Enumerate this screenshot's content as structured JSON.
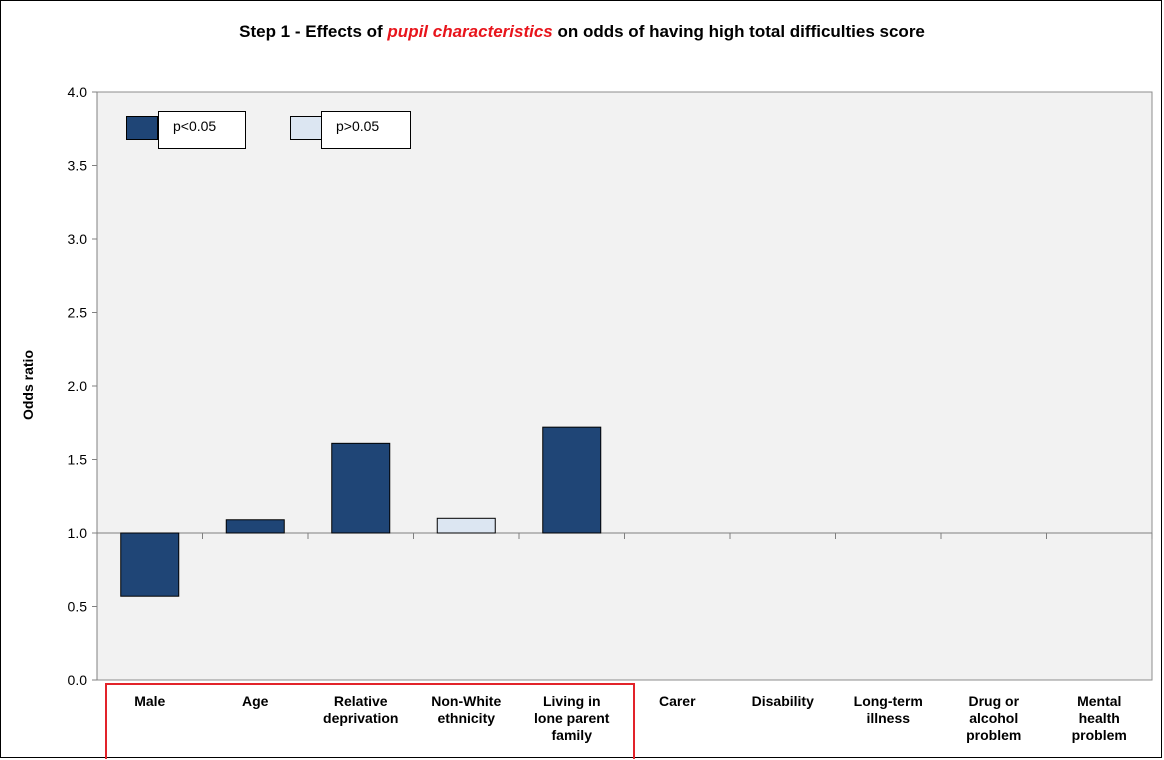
{
  "chart_data": {
    "type": "bar",
    "title_parts": [
      "Step 1 - Effects of ",
      "pupil characteristics",
      " on odds of having high total difficulties score"
    ],
    "ylabel": "Odds ratio",
    "ylim": [
      0,
      4.0
    ],
    "yticks": [
      "0.0",
      "0.5",
      "1.0",
      "1.5",
      "2.0",
      "2.5",
      "3.0",
      "3.5",
      "4.0"
    ],
    "baseline": 1.0,
    "categories": [
      [
        "Male"
      ],
      [
        "Age"
      ],
      [
        "Relative",
        "deprivation"
      ],
      [
        "Non-White",
        "ethnicity"
      ],
      [
        "Living in",
        "lone parent",
        "family"
      ],
      [
        "Carer"
      ],
      [
        "Disability"
      ],
      [
        "Long-term",
        "illness"
      ],
      [
        "Drug or",
        "alcohol",
        "problem"
      ],
      [
        "Mental",
        "health",
        "problem"
      ]
    ],
    "values": [
      0.57,
      1.09,
      1.61,
      1.1,
      1.72,
      null,
      null,
      null,
      null,
      null
    ],
    "significant": [
      true,
      true,
      true,
      false,
      true,
      null,
      null,
      null,
      null,
      null
    ],
    "legend": [
      {
        "label": "p<0.05",
        "color": "#1f4576"
      },
      {
        "label": "p>0.05",
        "color": "#dce6f2"
      }
    ],
    "colors": {
      "significant": "#1f4576",
      "not_significant": "#dce6f2",
      "plot_bg": "#f2f2f2",
      "highlight": "#e2232a",
      "title_highlight": "#e8141b"
    },
    "grid": false,
    "legend_position": "top-left",
    "highlighted_categories": [
      "Male",
      "Age",
      "Relative deprivation",
      "Non-White ethnicity",
      "Living in lone parent family"
    ]
  }
}
